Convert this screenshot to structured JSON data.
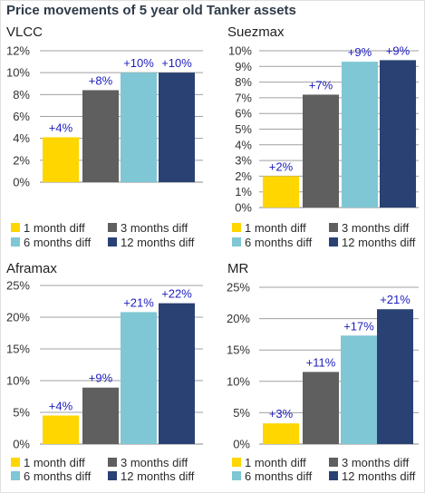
{
  "title": "Price movements of 5 year old Tanker assets",
  "colors": {
    "1 month diff": "#ffd600",
    "3 months diff": "#5f5f5f",
    "6 months diff": "#7fc7d4",
    "12 months diff": "#2a4174",
    "gridline": "#a0a0a0",
    "label": "#2020c0"
  },
  "chart_data": [
    {
      "type": "bar",
      "title": "VLCC",
      "categories": [
        "1 month diff",
        "3 months diff",
        "6 months diff",
        "12 months diff"
      ],
      "values": [
        4.1,
        8.4,
        10,
        10
      ],
      "data_labels": [
        "+4%",
        "+8%",
        "+10%",
        "+10%"
      ],
      "ylim": [
        0,
        12
      ],
      "yticks": [
        0,
        2,
        4,
        6,
        8,
        10,
        12
      ],
      "ytick_labels": [
        "0%",
        "2%",
        "4%",
        "6%",
        "8%",
        "10%",
        "12%"
      ],
      "legend": "bottom",
      "grid": true
    },
    {
      "type": "bar",
      "title": "Suezmax",
      "categories": [
        "1 month diff",
        "3 months diff",
        "6 months diff",
        "12 months diff"
      ],
      "values": [
        2,
        7.2,
        9.3,
        9.4
      ],
      "data_labels": [
        "+2%",
        "+7%",
        "+9%",
        "+9%"
      ],
      "ylim": [
        0,
        10
      ],
      "yticks": [
        0,
        1,
        2,
        3,
        4,
        5,
        6,
        7,
        8,
        9,
        10
      ],
      "ytick_labels": [
        "0%",
        "1%",
        "2%",
        "3%",
        "4%",
        "5%",
        "6%",
        "7%",
        "8%",
        "9%",
        "10%"
      ],
      "legend": "bottom",
      "grid": true
    },
    {
      "type": "bar",
      "title": "Aframax",
      "categories": [
        "1 month diff",
        "3 months diff",
        "6 months diff",
        "12 months diff"
      ],
      "values": [
        4.5,
        8.9,
        20.8,
        22.2
      ],
      "data_labels": [
        "+4%",
        "+9%",
        "+21%",
        "+22%"
      ],
      "ylim": [
        0,
        25
      ],
      "yticks": [
        0,
        5,
        10,
        15,
        20,
        25
      ],
      "ytick_labels": [
        "0%",
        "5%",
        "10%",
        "15%",
        "20%",
        "25%"
      ],
      "legend": "bottom",
      "grid": true
    },
    {
      "type": "bar",
      "title": "MR",
      "categories": [
        "1 month diff",
        "3 months diff",
        "6 months diff",
        "12 months diff"
      ],
      "values": [
        3.3,
        11.5,
        17.3,
        21.5
      ],
      "data_labels": [
        "+3%",
        "+11%",
        "+17%",
        "+21%"
      ],
      "ylim": [
        0,
        25
      ],
      "yticks": [
        0,
        5,
        10,
        15,
        20,
        25
      ],
      "ytick_labels": [
        "0%",
        "5%",
        "10%",
        "15%",
        "20%",
        "25%"
      ],
      "legend": "bottom",
      "grid": true
    }
  ]
}
